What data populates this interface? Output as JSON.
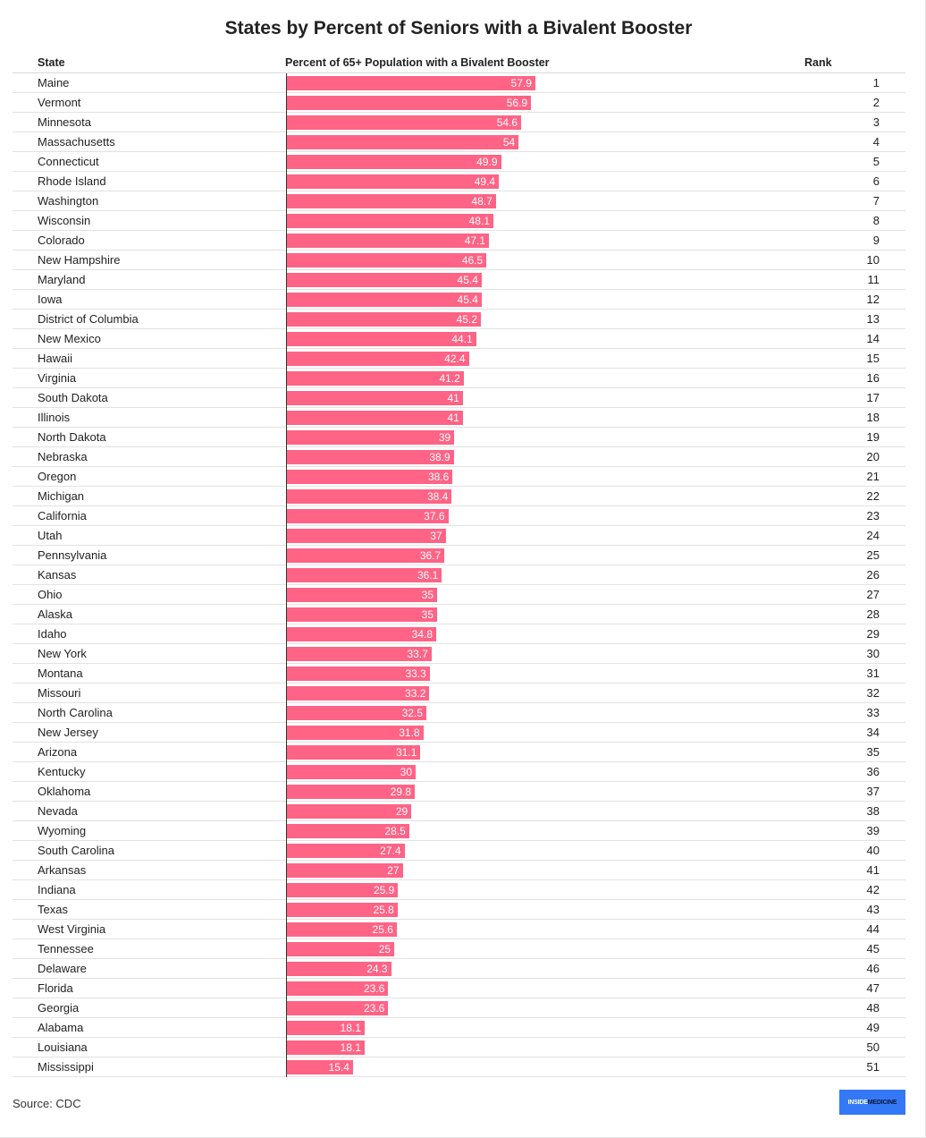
{
  "title": "States by Percent of Seniors with a Bivalent Booster",
  "columns": {
    "state": "State",
    "percent": "Percent of 65+ Population with a Bivalent Booster",
    "rank": "Rank"
  },
  "source": "Source: CDC",
  "logo": {
    "part1": "INSIDE",
    "part2": "MEDICINE"
  },
  "colors": {
    "bar": "#ff6385",
    "logo_bg": "#3478f6"
  },
  "chart_data": {
    "type": "bar",
    "orientation": "horizontal",
    "title": "States by Percent of Seniors with a Bivalent Booster",
    "xlabel": "Percent of 65+ Population with a Bivalent Booster",
    "ylabel": "State",
    "xlim": [
      0,
      100
    ],
    "rows": [
      {
        "state": "Maine",
        "value": "57.9",
        "rank": "1"
      },
      {
        "state": "Vermont",
        "value": "56.9",
        "rank": "2"
      },
      {
        "state": "Minnesota",
        "value": "54.6",
        "rank": "3"
      },
      {
        "state": "Massachusetts",
        "value": "54",
        "rank": "4"
      },
      {
        "state": "Connecticut",
        "value": "49.9",
        "rank": "5"
      },
      {
        "state": "Rhode Island",
        "value": "49.4",
        "rank": "6"
      },
      {
        "state": "Washington",
        "value": "48.7",
        "rank": "7"
      },
      {
        "state": "Wisconsin",
        "value": "48.1",
        "rank": "8"
      },
      {
        "state": "Colorado",
        "value": "47.1",
        "rank": "9"
      },
      {
        "state": "New Hampshire",
        "value": "46.5",
        "rank": "10"
      },
      {
        "state": "Maryland",
        "value": "45.4",
        "rank": "11"
      },
      {
        "state": "Iowa",
        "value": "45.4",
        "rank": "12"
      },
      {
        "state": "District of Columbia",
        "value": "45.2",
        "rank": "13"
      },
      {
        "state": "New Mexico",
        "value": "44.1",
        "rank": "14"
      },
      {
        "state": "Hawaii",
        "value": "42.4",
        "rank": "15"
      },
      {
        "state": "Virginia",
        "value": "41.2",
        "rank": "16"
      },
      {
        "state": "South Dakota",
        "value": "41",
        "rank": "17"
      },
      {
        "state": "Illinois",
        "value": "41",
        "rank": "18"
      },
      {
        "state": "North Dakota",
        "value": "39",
        "rank": "19"
      },
      {
        "state": "Nebraska",
        "value": "38.9",
        "rank": "20"
      },
      {
        "state": "Oregon",
        "value": "38.6",
        "rank": "21"
      },
      {
        "state": "Michigan",
        "value": "38.4",
        "rank": "22"
      },
      {
        "state": "California",
        "value": "37.6",
        "rank": "23"
      },
      {
        "state": "Utah",
        "value": "37",
        "rank": "24"
      },
      {
        "state": "Pennsylvania",
        "value": "36.7",
        "rank": "25"
      },
      {
        "state": "Kansas",
        "value": "36.1",
        "rank": "26"
      },
      {
        "state": "Ohio",
        "value": "35",
        "rank": "27"
      },
      {
        "state": "Alaska",
        "value": "35",
        "rank": "28"
      },
      {
        "state": "Idaho",
        "value": "34.8",
        "rank": "29"
      },
      {
        "state": "New York",
        "value": "33.7",
        "rank": "30"
      },
      {
        "state": "Montana",
        "value": "33.3",
        "rank": "31"
      },
      {
        "state": "Missouri",
        "value": "33.2",
        "rank": "32"
      },
      {
        "state": "North Carolina",
        "value": "32.5",
        "rank": "33"
      },
      {
        "state": "New Jersey",
        "value": "31.8",
        "rank": "34"
      },
      {
        "state": "Arizona",
        "value": "31.1",
        "rank": "35"
      },
      {
        "state": "Kentucky",
        "value": "30",
        "rank": "36"
      },
      {
        "state": "Oklahoma",
        "value": "29.8",
        "rank": "37"
      },
      {
        "state": "Nevada",
        "value": "29",
        "rank": "38"
      },
      {
        "state": "Wyoming",
        "value": "28.5",
        "rank": "39"
      },
      {
        "state": "South Carolina",
        "value": "27.4",
        "rank": "40"
      },
      {
        "state": "Arkansas",
        "value": "27",
        "rank": "41"
      },
      {
        "state": "Indiana",
        "value": "25.9",
        "rank": "42"
      },
      {
        "state": "Texas",
        "value": "25.8",
        "rank": "43"
      },
      {
        "state": "West Virginia",
        "value": "25.6",
        "rank": "44"
      },
      {
        "state": "Tennessee",
        "value": "25",
        "rank": "45"
      },
      {
        "state": "Delaware",
        "value": "24.3",
        "rank": "46"
      },
      {
        "state": "Florida",
        "value": "23.6",
        "rank": "47"
      },
      {
        "state": "Georgia",
        "value": "23.6",
        "rank": "48"
      },
      {
        "state": "Alabama",
        "value": "18.1",
        "rank": "49"
      },
      {
        "state": "Louisiana",
        "value": "18.1",
        "rank": "50"
      },
      {
        "state": "Mississippi",
        "value": "15.4",
        "rank": "51"
      }
    ]
  }
}
